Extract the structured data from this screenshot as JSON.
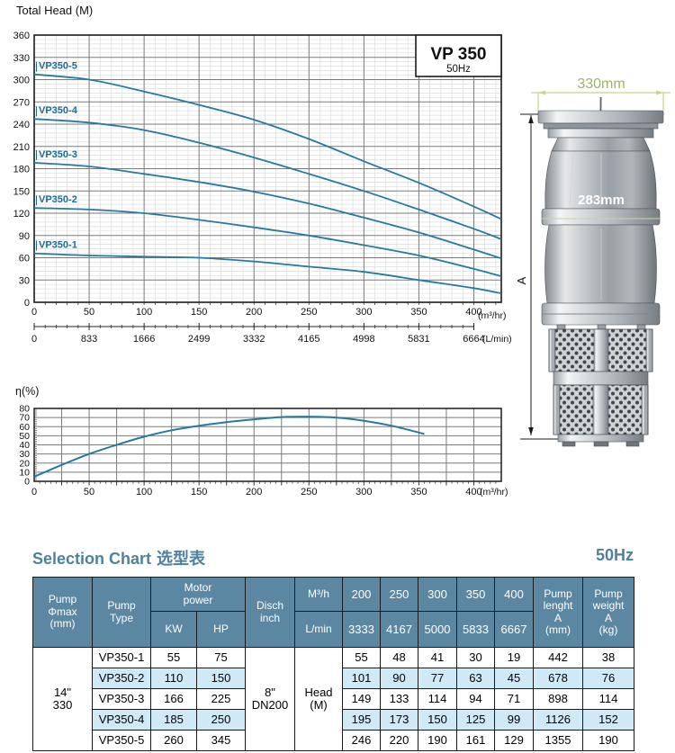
{
  "accent_color": "#4e80a0",
  "curve_color": "#2679a1",
  "curve_label_color": "#1d6b91",
  "table_header_bg": "#5b87a2",
  "table_highlight_bg": "#cfe9f6",
  "dim_green": "#c3d48e",
  "dim_green_text": "#9fb26a",
  "chart_data": [
    {
      "type": "line",
      "title": "VP 350",
      "subtitle": "50Hz",
      "ylabel": "Total Head (M)",
      "x_unit": "(m³/hr)",
      "x2_unit": "(L/min)",
      "xlim": [
        0,
        425
      ],
      "ylim": [
        0,
        360
      ],
      "x_major": 50,
      "x_minor": 10,
      "y_major": 30,
      "y_minor": 6,
      "grid": true,
      "x_ticks": [
        0,
        50,
        100,
        150,
        200,
        250,
        300,
        350,
        400
      ],
      "x2_ticks": [
        "0",
        "833",
        "1666",
        "2499",
        "3332",
        "4165",
        "4998",
        "5831",
        "6664"
      ],
      "y_ticks": [
        0,
        30,
        60,
        90,
        120,
        150,
        180,
        210,
        240,
        270,
        300,
        330,
        360
      ],
      "series": [
        {
          "name": "VP350-1",
          "x": [
            0,
            50,
            100,
            150,
            200,
            250,
            300,
            350,
            400,
            425
          ],
          "y": [
            66,
            63,
            61.5,
            60,
            55,
            48,
            41,
            30,
            19,
            12
          ]
        },
        {
          "name": "VP350-2",
          "x": [
            0,
            50,
            100,
            150,
            200,
            250,
            300,
            350,
            400,
            425
          ],
          "y": [
            127,
            125,
            120,
            111,
            101,
            90,
            77,
            63,
            45,
            35
          ]
        },
        {
          "name": "VP350-3",
          "x": [
            0,
            50,
            100,
            150,
            200,
            250,
            300,
            350,
            400,
            425
          ],
          "y": [
            188,
            183,
            173,
            162,
            149,
            133,
            114,
            94,
            71,
            59
          ]
        },
        {
          "name": "VP350-4",
          "x": [
            0,
            50,
            100,
            150,
            200,
            250,
            300,
            350,
            400,
            425
          ],
          "y": [
            247,
            242,
            232,
            215,
            195,
            173,
            150,
            125,
            99,
            85
          ]
        },
        {
          "name": "VP350-5",
          "x": [
            0,
            50,
            100,
            150,
            200,
            250,
            300,
            350,
            400,
            425
          ],
          "y": [
            307,
            300,
            284,
            266,
            246,
            220,
            190,
            161,
            129,
            112
          ]
        }
      ]
    },
    {
      "type": "line",
      "ylabel": "η(%)",
      "x_unit": "(m³/hr)",
      "xlim": [
        0,
        425
      ],
      "ylim": [
        0,
        80
      ],
      "x_major": 25,
      "x_minor": 5,
      "y_major": 10,
      "y_minor": 2,
      "grid": true,
      "x_ticks": [
        0,
        50,
        100,
        150,
        200,
        250,
        300,
        350,
        400
      ],
      "y_ticks": [
        0,
        10,
        20,
        30,
        40,
        50,
        60,
        70,
        80
      ],
      "series": [
        {
          "name": "efficiency",
          "x": [
            0,
            25,
            50,
            75,
            100,
            125,
            150,
            175,
            200,
            225,
            250,
            275,
            300,
            325,
            355
          ],
          "y": [
            5,
            18,
            30,
            40,
            49,
            56,
            61,
            65,
            68,
            70.5,
            71,
            70,
            66.5,
            61,
            52
          ]
        }
      ]
    }
  ],
  "pump_figure": {
    "width_label": "330mm",
    "diameter_label": "283mm",
    "height_label": "A"
  },
  "selection_table": {
    "title_en": "Selection Chart",
    "title_zh": "选型表",
    "freq_label": "50Hz",
    "header": {
      "pump_phimax": "Pump\nΦmax\n(mm)",
      "pump_type": "Pump\nType",
      "motor_power": "Motor\npower",
      "kw": "KW",
      "hp": "HP",
      "disch": "Disch\ninch",
      "m3h": "M³/h",
      "lmin": "L/min",
      "pump_length": "Pump\nlenght\nA\n(mm)",
      "pump_weight": "Pump\nweight\nA\n(kg)",
      "flow_m3h": [
        "200",
        "250",
        "300",
        "350",
        "400"
      ],
      "flow_lmin": [
        "3333",
        "4167",
        "5000",
        "5833",
        "6667"
      ]
    },
    "pump_phimax_value": "14\"\n330",
    "disch_value": "8\"\nDN200",
    "head_label": "Head\n(M)",
    "rows": [
      {
        "type": "VP350-1",
        "kw": "55",
        "hp": "75",
        "heads": [
          "55",
          "48",
          "41",
          "30",
          "19"
        ],
        "length": "442",
        "weight": "38",
        "highlight": false
      },
      {
        "type": "VP350-2",
        "kw": "110",
        "hp": "150",
        "heads": [
          "101",
          "90",
          "77",
          "63",
          "45"
        ],
        "length": "678",
        "weight": "76",
        "highlight": true
      },
      {
        "type": "VP350-3",
        "kw": "166",
        "hp": "225",
        "heads": [
          "149",
          "133",
          "114",
          "94",
          "71"
        ],
        "length": "898",
        "weight": "114",
        "highlight": false
      },
      {
        "type": "VP350-4",
        "kw": "185",
        "hp": "250",
        "heads": [
          "195",
          "173",
          "150",
          "125",
          "99"
        ],
        "length": "1126",
        "weight": "152",
        "highlight": true
      },
      {
        "type": "VP350-5",
        "kw": "260",
        "hp": "345",
        "heads": [
          "246",
          "220",
          "190",
          "161",
          "129"
        ],
        "length": "1355",
        "weight": "190",
        "highlight": false
      }
    ]
  }
}
